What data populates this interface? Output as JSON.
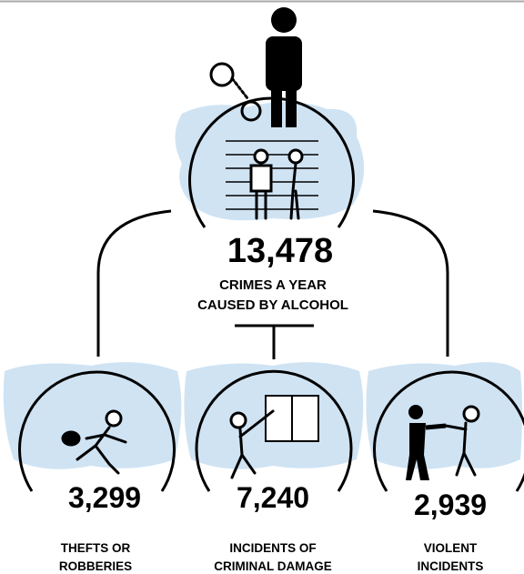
{
  "main": {
    "value": "13,478",
    "label": [
      "CRIMES A YEAR",
      "CAUSED BY ALCOHOL"
    ]
  },
  "nodes": [
    {
      "value": "3,299",
      "label": [
        "THEFTS OR",
        "ROBBERIES"
      ]
    },
    {
      "value": "7,240",
      "label": [
        "INCIDENTS OF",
        "CRIMINAL DAMAGE"
      ]
    },
    {
      "value": "2,939",
      "label": [
        "VIOLENT",
        "INCIDENTS"
      ]
    }
  ]
}
